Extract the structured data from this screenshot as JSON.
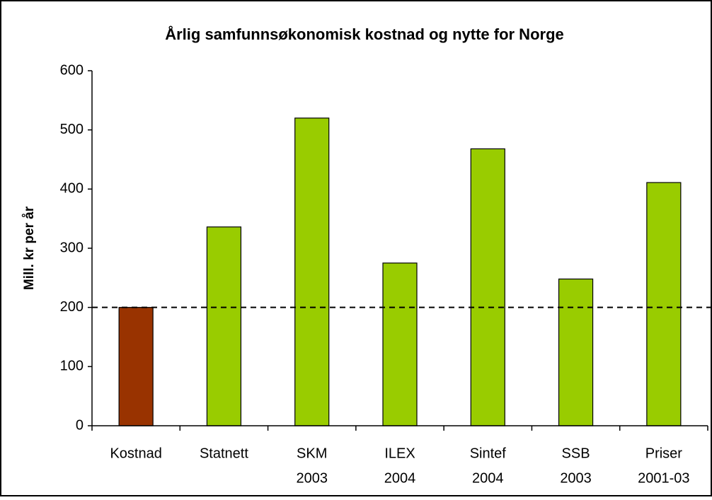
{
  "chart_data": {
    "type": "bar",
    "title": "Årlig samfunnsøkonomisk kostnad og nytte for Norge",
    "y_label": "Mill. kr per år",
    "categories": [
      [
        "Kostnad"
      ],
      [
        "Statnett"
      ],
      [
        "SKM",
        "2003"
      ],
      [
        "ILEX",
        "2004"
      ],
      [
        "Sintef",
        "2004"
      ],
      [
        "SSB",
        "2003"
      ],
      [
        "Priser",
        "2001-03"
      ]
    ],
    "values": [
      200,
      336,
      520,
      275,
      468,
      248,
      411
    ],
    "colors": [
      "#993300",
      "#99cc00",
      "#99cc00",
      "#99cc00",
      "#99cc00",
      "#99cc00",
      "#99cc00"
    ],
    "reference_line": 200,
    "ylim": [
      0,
      600
    ],
    "yticks": [
      0,
      100,
      200,
      300,
      400,
      500,
      600
    ],
    "grid": false
  }
}
